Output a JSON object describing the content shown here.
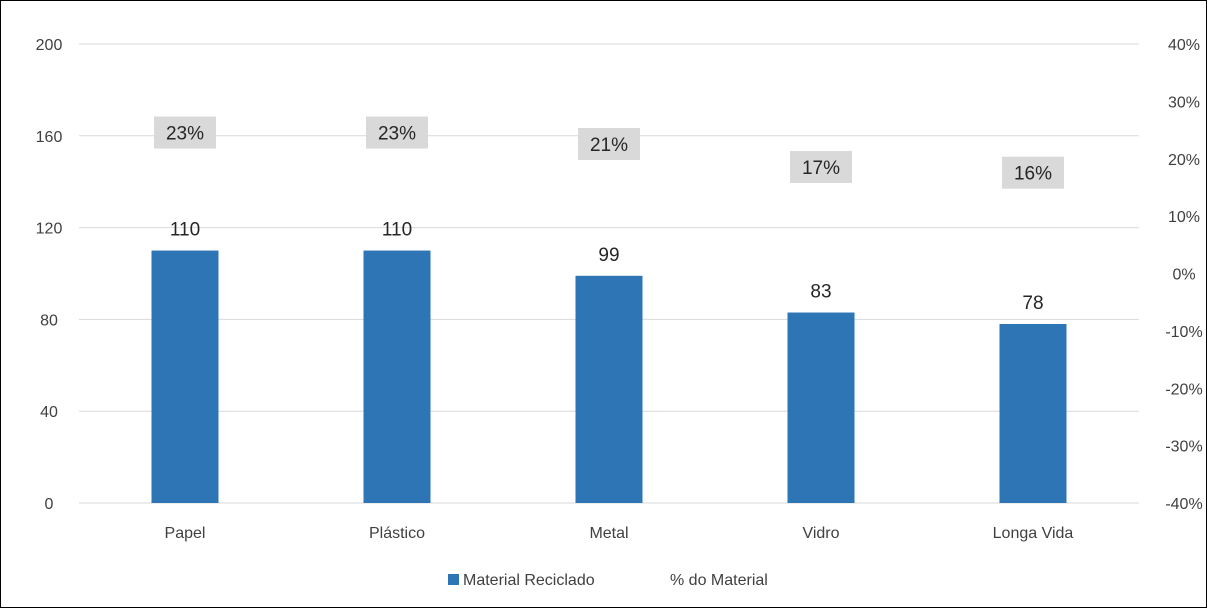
{
  "chart_data": {
    "type": "bar",
    "categories": [
      "Papel",
      "Plástico",
      "Metal",
      "Vidro",
      "Longa Vida"
    ],
    "series": [
      {
        "name": "Material Reciclado",
        "axis": "left",
        "type": "bar",
        "color": "#2E75B6",
        "values": [
          110,
          110,
          99,
          83,
          78
        ]
      },
      {
        "name": "% do Material",
        "axis": "right",
        "type": "label",
        "label_background": "#D9D9D9",
        "values": [
          0.23,
          0.23,
          0.21,
          0.17,
          0.16
        ],
        "labels": [
          "23%",
          "23%",
          "21%",
          "17%",
          "16%"
        ]
      }
    ],
    "data_labels": [
      "110",
      "110",
      "99",
      "83",
      "78"
    ],
    "ylim": [
      0,
      200
    ],
    "y_ticks": [
      "0",
      "40",
      "80",
      "120",
      "160",
      "200"
    ],
    "y2lim": [
      -0.4,
      0.4
    ],
    "y2_ticks": [
      "-40%",
      "-30%",
      "-20%",
      "-10%",
      "0%",
      "10%",
      "20%",
      "30%",
      "40%"
    ],
    "grid": true,
    "legend_position": "bottom",
    "title": "",
    "xlabel": "",
    "ylabel": ""
  }
}
